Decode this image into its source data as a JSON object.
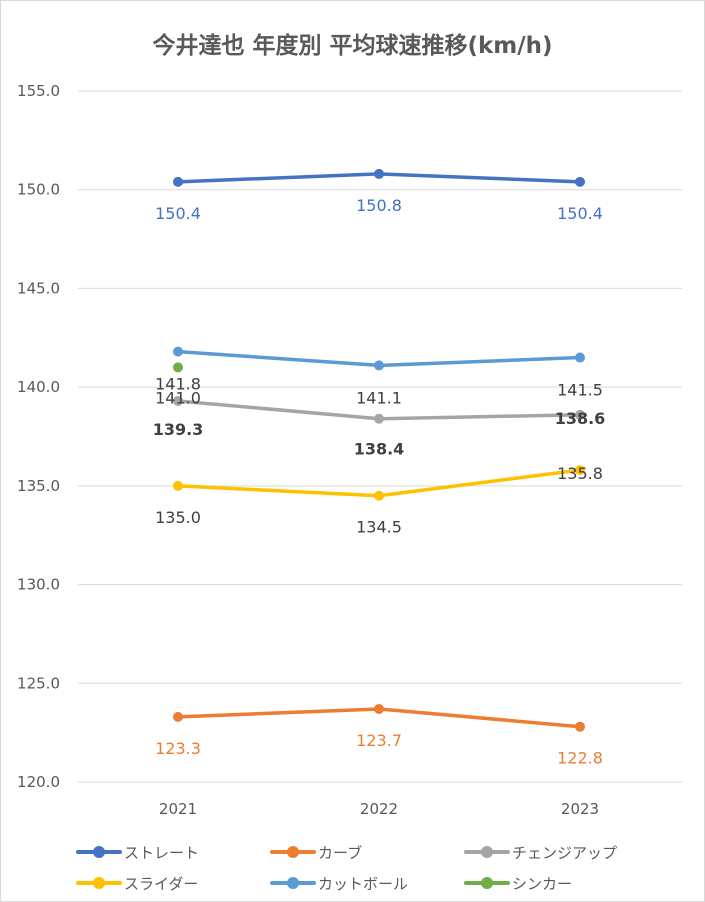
{
  "chart_data": {
    "type": "line",
    "title": "今井達也 年度別 平均球速推移(km/h)",
    "xlabel": "",
    "ylabel": "",
    "categories": [
      "2021",
      "2022",
      "2023"
    ],
    "ylim": [
      120.0,
      155.0
    ],
    "yticks": [
      "120.0",
      "125.0",
      "130.0",
      "135.0",
      "140.0",
      "145.0",
      "150.0",
      "155.0"
    ],
    "grid": true,
    "legend_position": "bottom",
    "series": [
      {
        "name": "ストレート",
        "color": "#4472c4",
        "values": [
          150.4,
          150.8,
          150.4
        ],
        "labels": [
          "150.4",
          "150.8",
          "150.4"
        ],
        "label_color": "#4472c4",
        "bold": false
      },
      {
        "name": "カーブ",
        "color": "#ed7d31",
        "values": [
          123.3,
          123.7,
          122.8
        ],
        "labels": [
          "123.3",
          "123.7",
          "122.8"
        ],
        "label_color": "#ed7d31",
        "bold": false
      },
      {
        "name": "チェンジアップ",
        "color": "#a5a5a5",
        "values": [
          139.3,
          138.4,
          138.6
        ],
        "labels": [
          "139.3",
          "138.4",
          "138.6"
        ],
        "label_color": "#404040",
        "bold": true
      },
      {
        "name": "スライダー",
        "color": "#ffc000",
        "values": [
          135.0,
          134.5,
          135.8
        ],
        "labels": [
          "135.0",
          "134.5",
          "135.8"
        ],
        "label_color": "#404040",
        "bold": false
      },
      {
        "name": "カットボール",
        "color": "#5b9bd5",
        "values": [
          141.8,
          141.1,
          141.5
        ],
        "labels": [
          "141.8",
          "141.1",
          "141.5"
        ],
        "label_color": "#404040",
        "bold": false
      },
      {
        "name": "シンカー",
        "color": "#70ad47",
        "values": [
          141.0,
          null,
          null
        ],
        "labels": [
          "141.0",
          "",
          ""
        ],
        "label_color": "#404040",
        "bold": false
      }
    ]
  }
}
